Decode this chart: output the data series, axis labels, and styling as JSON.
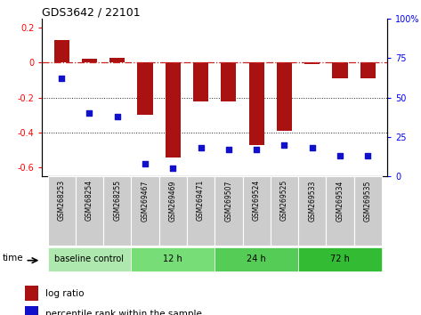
{
  "title": "GDS3642 / 22101",
  "samples": [
    "GSM268253",
    "GSM268254",
    "GSM268255",
    "GSM269467",
    "GSM269469",
    "GSM269471",
    "GSM269507",
    "GSM269524",
    "GSM269525",
    "GSM269533",
    "GSM269534",
    "GSM269535"
  ],
  "log_ratio": [
    0.13,
    0.02,
    0.03,
    -0.3,
    -0.54,
    -0.22,
    -0.22,
    -0.47,
    -0.39,
    -0.01,
    -0.09,
    -0.09
  ],
  "percentile_rank": [
    62,
    40,
    38,
    8,
    5,
    18,
    17,
    17,
    20,
    18,
    13,
    13
  ],
  "bar_color": "#aa1111",
  "dot_color": "#1111cc",
  "ylim_left": [
    -0.65,
    0.25
  ],
  "ylim_right": [
    0,
    100
  ],
  "yticks_left": [
    -0.6,
    -0.4,
    -0.2,
    0.0,
    0.2
  ],
  "yticks_right": [
    0,
    25,
    50,
    75,
    100
  ],
  "groups": [
    {
      "label": "baseline control",
      "start": 0,
      "end": 3,
      "color": "#aee8ae"
    },
    {
      "label": "12 h",
      "start": 3,
      "end": 6,
      "color": "#77dd77"
    },
    {
      "label": "24 h",
      "start": 6,
      "end": 9,
      "color": "#55cc55"
    },
    {
      "label": "72 h",
      "start": 9,
      "end": 12,
      "color": "#33bb33"
    }
  ],
  "time_label": "time",
  "legend_logratio": "log ratio",
  "legend_percentile": "percentile rank within the sample",
  "hline_color": "#cc2222",
  "dotted_line_color": "#222222",
  "xtick_bg": "#cccccc",
  "bar_width": 0.55
}
